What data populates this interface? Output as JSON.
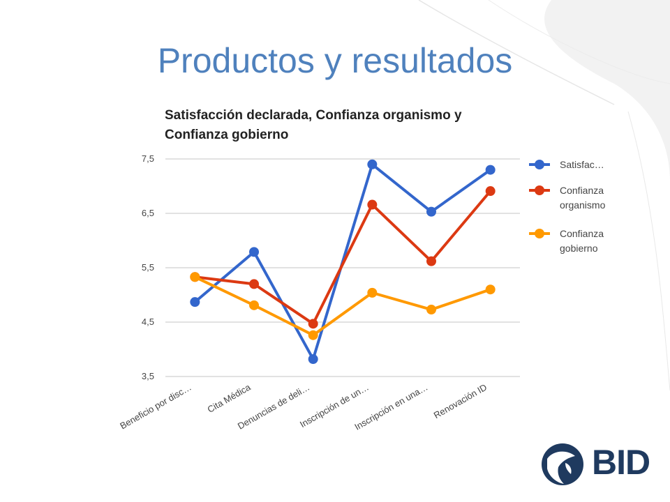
{
  "slide": {
    "title": "Productos y resultados"
  },
  "logo": {
    "text": "BID"
  },
  "colors": {
    "title": "#4f81bd",
    "grid": "#d9d9d9",
    "axis_text": "#444444"
  },
  "chart_data": {
    "type": "line",
    "title": "Satisfacción declarada, Confianza organismo y Confianza gobierno",
    "title_lines": [
      "Satisfacción declarada, Confianza organismo y",
      "Confianza gobierno"
    ],
    "xlabel": "",
    "ylabel": "",
    "categories": [
      "Beneficio por disc…",
      "Cita Médica",
      "Denuncias de deli…",
      "Inscripción de un…",
      "Inscripción en una…",
      "Renovación ID"
    ],
    "ylim": [
      3.5,
      7.5
    ],
    "yticks": [
      "3,5",
      "4,5",
      "5,5",
      "6,5",
      "7,5"
    ],
    "grid": true,
    "legend_position": "right",
    "series": [
      {
        "name": "Satisfac…",
        "legend_lines": [
          "Satisfac…"
        ],
        "color": "#3366cc",
        "values": [
          4.87,
          5.79,
          3.82,
          7.4,
          6.53,
          7.3
        ]
      },
      {
        "name": "Confianza organismo",
        "legend_lines": [
          "Confianza",
          "organismo"
        ],
        "color": "#dc3912",
        "values": [
          5.33,
          5.2,
          4.47,
          6.66,
          5.62,
          6.91
        ]
      },
      {
        "name": "Confianza gobierno",
        "legend_lines": [
          "Confianza",
          "gobierno"
        ],
        "color": "#ff9900",
        "values": [
          5.33,
          4.81,
          4.26,
          5.04,
          4.73,
          5.1
        ]
      }
    ]
  }
}
